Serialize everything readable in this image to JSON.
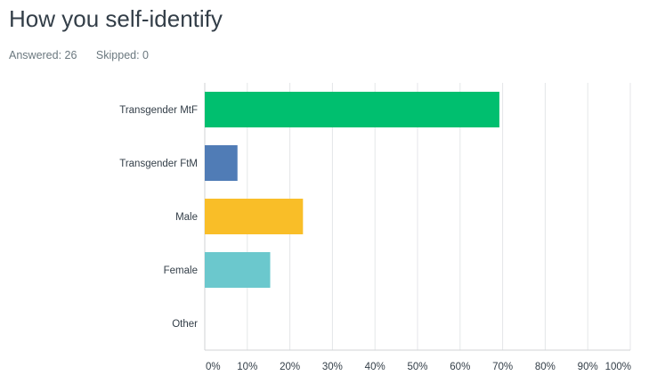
{
  "header": {
    "title": "How you self-identify",
    "answered": "Answered: 26",
    "skipped": "Skipped: 0"
  },
  "chart_data": {
    "type": "bar",
    "orientation": "horizontal",
    "categories": [
      "Transgender MtF",
      "Transgender FtM",
      "Male",
      "Female",
      "Other"
    ],
    "values": [
      69.23,
      7.69,
      23.08,
      15.38,
      0
    ],
    "colors": [
      "#00bf6f",
      "#507cb6",
      "#f9be28",
      "#6bc8cd",
      "#ff8b4f"
    ],
    "xlim": [
      0,
      100
    ],
    "x_ticks": [
      0,
      10,
      20,
      30,
      40,
      50,
      60,
      70,
      80,
      90,
      100
    ],
    "x_tick_labels": [
      "0%",
      "10%",
      "20%",
      "30%",
      "40%",
      "50%",
      "60%",
      "70%",
      "80%",
      "90%",
      "100%"
    ],
    "grid": true
  }
}
